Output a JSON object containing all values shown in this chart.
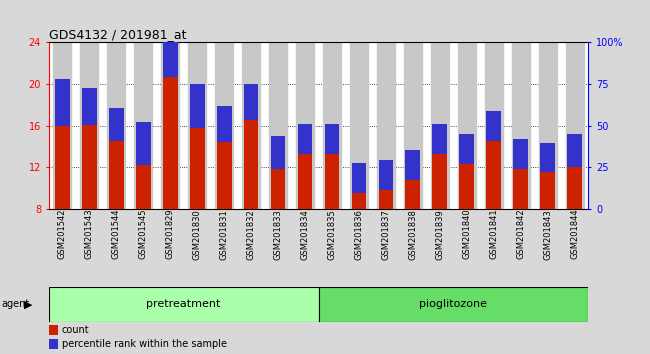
{
  "title": "GDS4132 / 201981_at",
  "samples": [
    "GSM201542",
    "GSM201543",
    "GSM201544",
    "GSM201545",
    "GSM201829",
    "GSM201830",
    "GSM201831",
    "GSM201832",
    "GSM201833",
    "GSM201834",
    "GSM201835",
    "GSM201836",
    "GSM201837",
    "GSM201838",
    "GSM201839",
    "GSM201840",
    "GSM201841",
    "GSM201842",
    "GSM201843",
    "GSM201844"
  ],
  "count_values": [
    16.0,
    16.1,
    14.5,
    12.2,
    20.7,
    15.8,
    14.4,
    16.5,
    11.8,
    13.3,
    13.3,
    9.5,
    9.8,
    10.8,
    13.3,
    12.3,
    14.5,
    11.8,
    11.5,
    12.0
  ],
  "percentile_pct": [
    28,
    22,
    20,
    26,
    26,
    26,
    22,
    22,
    20,
    18,
    18,
    18,
    18,
    18,
    18,
    18,
    18,
    18,
    18,
    20
  ],
  "bar_bottom": 8.0,
  "ylim_left": [
    8,
    24
  ],
  "ylim_right": [
    0,
    100
  ],
  "yticks_left": [
    8,
    12,
    16,
    20,
    24
  ],
  "ytick_labels_left": [
    "8",
    "12",
    "16",
    "20",
    "24"
  ],
  "yticks_right": [
    0,
    25,
    50,
    75,
    100
  ],
  "ytick_labels_right": [
    "0",
    "25",
    "50",
    "75",
    "100%"
  ],
  "count_color": "#cc2200",
  "percentile_color": "#3333cc",
  "bar_width": 0.55,
  "bg_color": "#d8d8d8",
  "plot_bg": "#ffffff",
  "col_bg": "#c8c8c8",
  "agent_label": "agent",
  "legend_count_label": "count",
  "legend_percentile_label": "percentile rank within the sample",
  "pretreat_color": "#aaffaa",
  "piogl_color": "#66dd66",
  "pretreat_n": 10,
  "piogl_n": 10
}
